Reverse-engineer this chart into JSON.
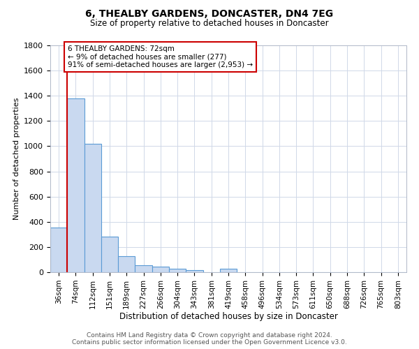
{
  "title": "6, THEALBY GARDENS, DONCASTER, DN4 7EG",
  "subtitle": "Size of property relative to detached houses in Doncaster",
  "xlabel": "Distribution of detached houses by size in Doncaster",
  "ylabel": "Number of detached properties",
  "categories": [
    "36sqm",
    "74sqm",
    "112sqm",
    "151sqm",
    "189sqm",
    "227sqm",
    "266sqm",
    "304sqm",
    "343sqm",
    "381sqm",
    "419sqm",
    "458sqm",
    "496sqm",
    "534sqm",
    "573sqm",
    "611sqm",
    "650sqm",
    "688sqm",
    "726sqm",
    "765sqm",
    "803sqm"
  ],
  "values": [
    355,
    1380,
    1020,
    285,
    128,
    55,
    45,
    30,
    18,
    0,
    30,
    0,
    0,
    0,
    0,
    0,
    0,
    0,
    0,
    0,
    0
  ],
  "bar_color": "#c9d9f0",
  "bar_edge_color": "#5b9bd5",
  "ylim": [
    0,
    1800
  ],
  "yticks": [
    0,
    200,
    400,
    600,
    800,
    1000,
    1200,
    1400,
    1600,
    1800
  ],
  "annotation_text": "6 THEALBY GARDENS: 72sqm\n← 9% of detached houses are smaller (277)\n91% of semi-detached houses are larger (2,953) →",
  "annotation_box_color": "#ffffff",
  "annotation_box_edge_color": "#cc0000",
  "vline_color": "#cc0000",
  "footer_line1": "Contains HM Land Registry data © Crown copyright and database right 2024.",
  "footer_line2": "Contains public sector information licensed under the Open Government Licence v3.0.",
  "background_color": "#ffffff",
  "grid_color": "#d0d8e8"
}
